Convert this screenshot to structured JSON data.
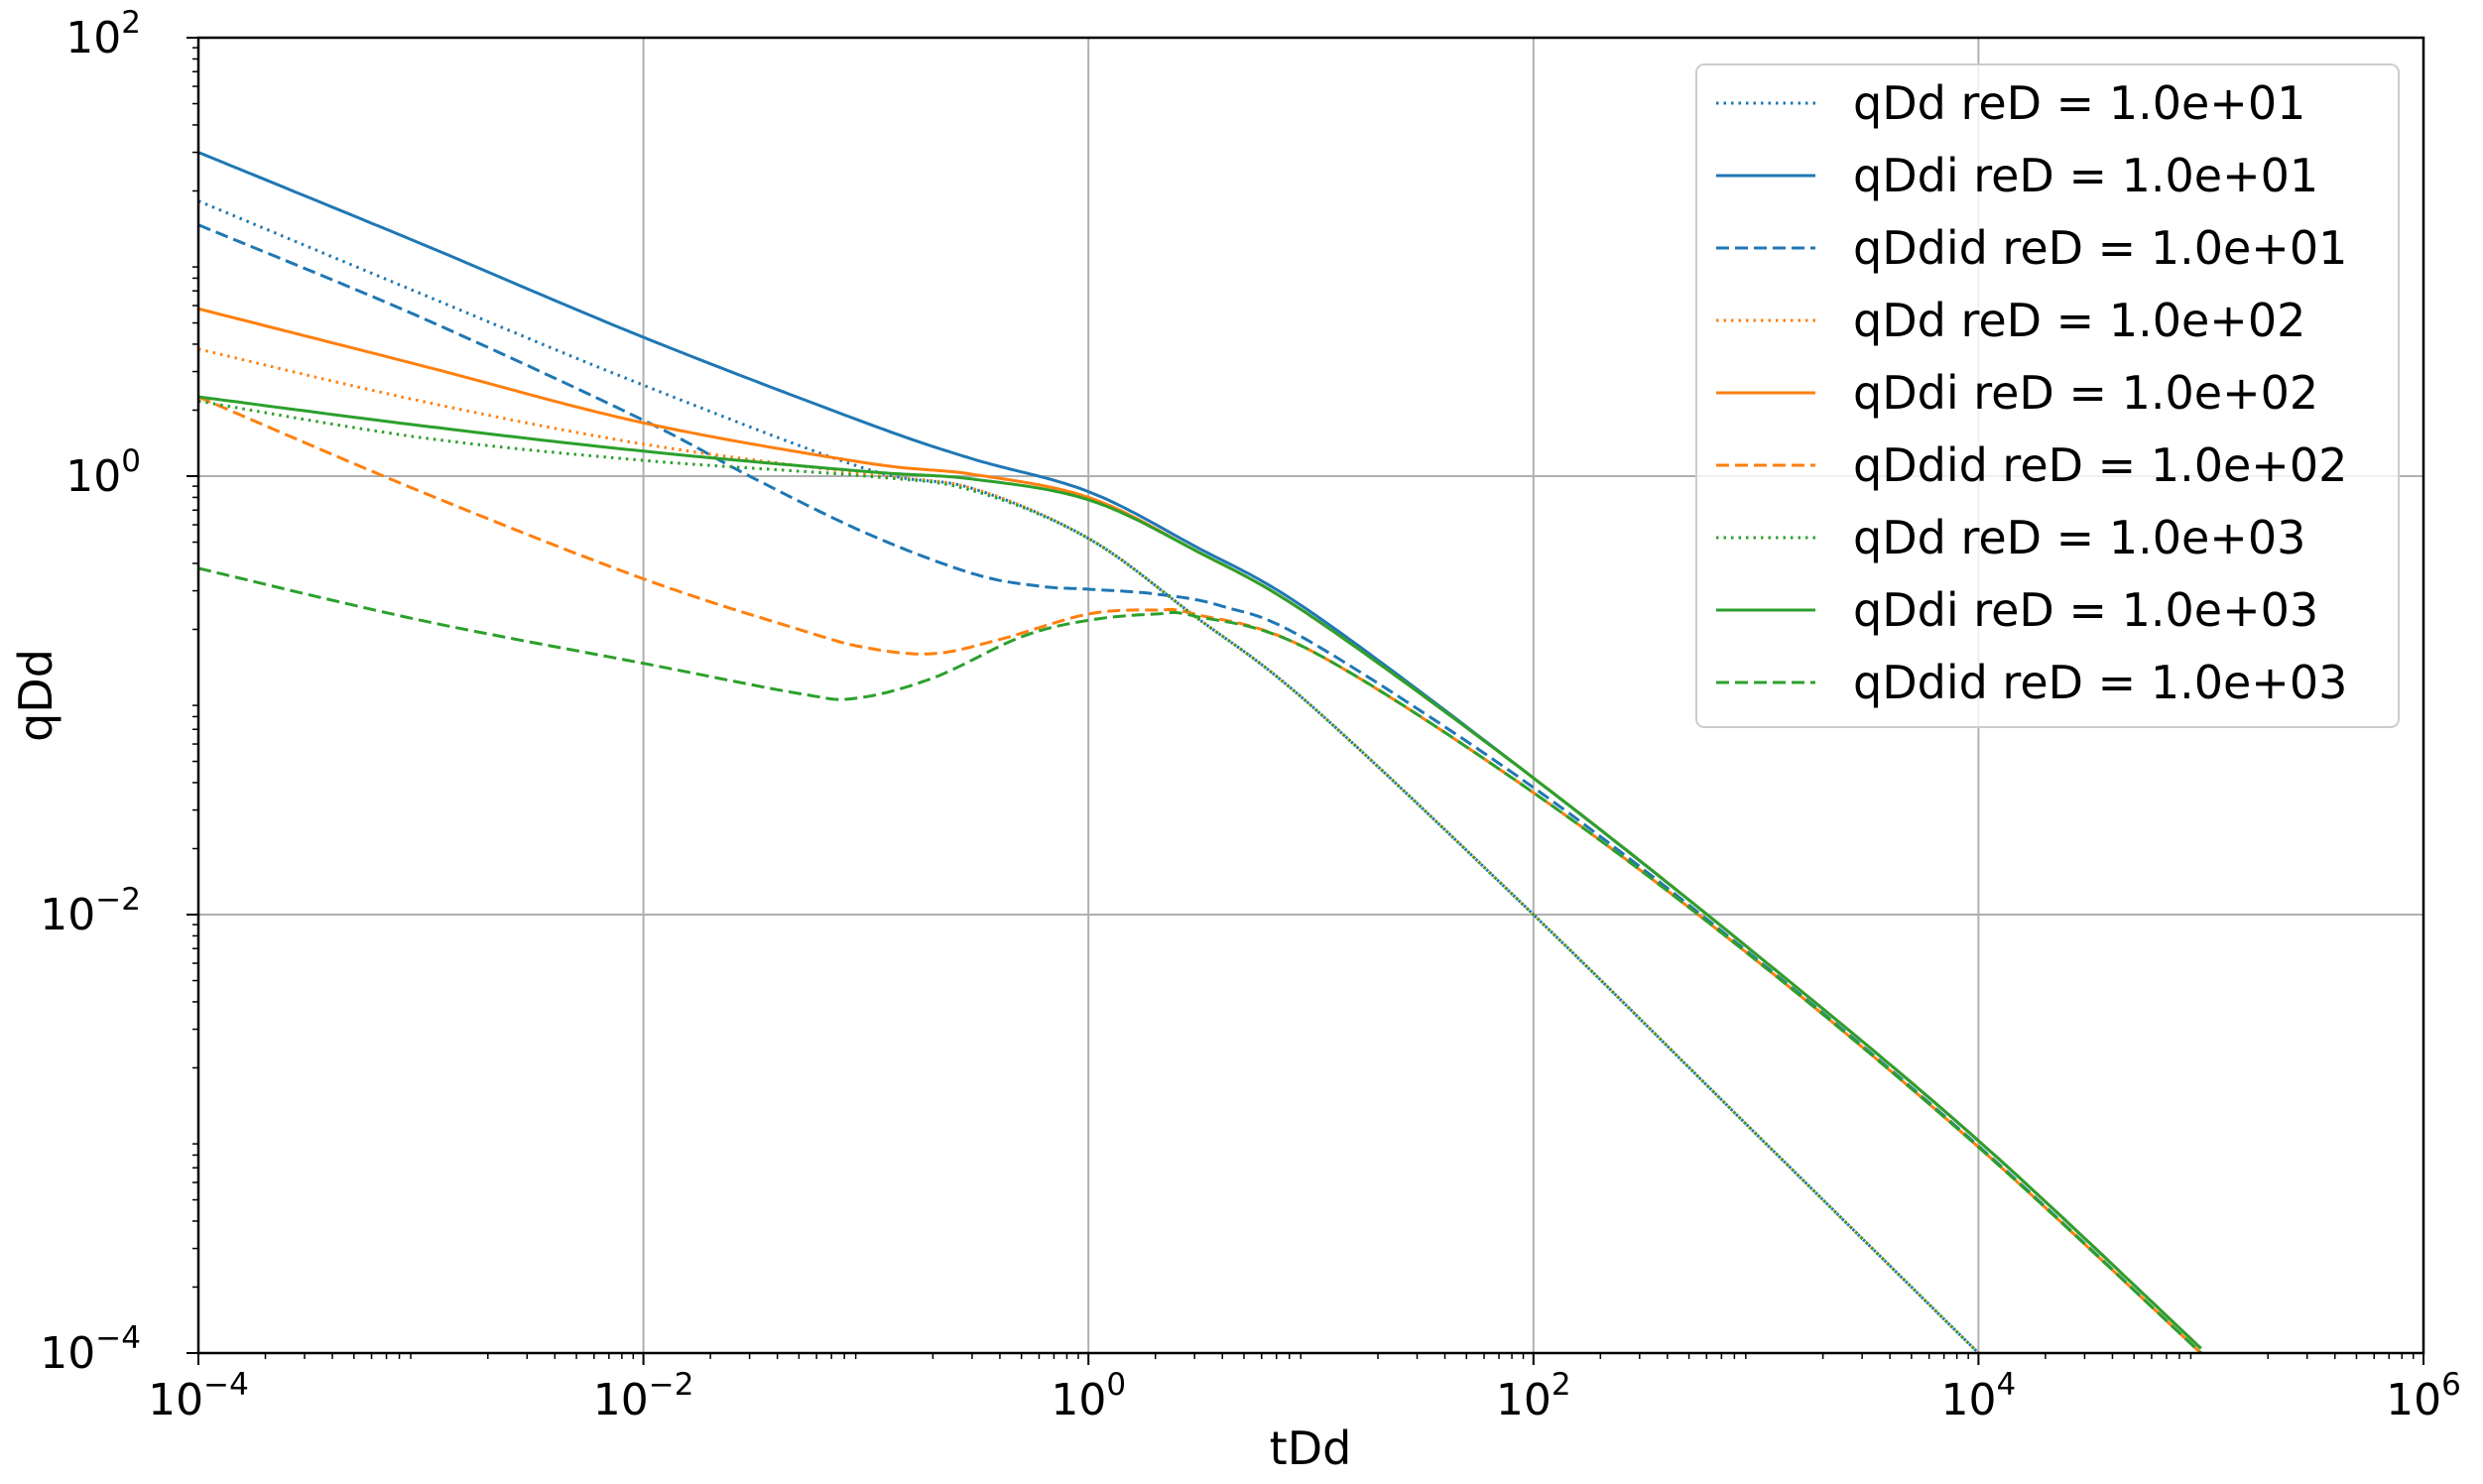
{
  "chart_data": {
    "type": "line",
    "title": "",
    "xlabel": "tDd",
    "ylabel": "qDd",
    "xscale": "log",
    "yscale": "log",
    "xlim": [
      0.0001,
      1000000
    ],
    "ylim": [
      0.0001,
      100
    ],
    "grid": true,
    "legend_position": "top-right",
    "x_ticks": [
      {
        "value": 0.0001,
        "base": "10",
        "exp": "−4"
      },
      {
        "value": 0.01,
        "base": "10",
        "exp": "−2"
      },
      {
        "value": 1,
        "base": "10",
        "exp": "0"
      },
      {
        "value": 100,
        "base": "10",
        "exp": "2"
      },
      {
        "value": 10000,
        "base": "10",
        "exp": "4"
      },
      {
        "value": 1000000,
        "base": "10",
        "exp": "6"
      }
    ],
    "y_ticks": [
      {
        "value": 0.0001,
        "base": "10",
        "exp": "−4"
      },
      {
        "value": 0.01,
        "base": "10",
        "exp": "−2"
      },
      {
        "value": 1,
        "base": "10",
        "exp": "0"
      },
      {
        "value": 100,
        "base": "10",
        "exp": "2"
      }
    ],
    "series": [
      {
        "name": "qDd reD = 1.0e+01",
        "color": "#1f77b4",
        "style": "dotted",
        "x": [
          0.0001,
          0.001,
          0.01,
          0.1,
          0.3,
          1,
          3,
          10,
          100,
          1000,
          10000
        ],
        "y": [
          18,
          6.8,
          2.6,
          1.08,
          0.88,
          0.52,
          0.23,
          0.09,
          0.01,
          0.001,
          0.0001
        ]
      },
      {
        "name": "qDdi reD = 1.0e+01",
        "color": "#1f77b4",
        "style": "solid",
        "x": [
          0.0001,
          0.001,
          0.01,
          0.1,
          0.3,
          1,
          3,
          10,
          100,
          1000,
          10000,
          100000
        ],
        "y": [
          30,
          11.5,
          4.3,
          1.75,
          1.2,
          0.85,
          0.48,
          0.24,
          0.042,
          0.0066,
          0.00093,
          0.000105
        ]
      },
      {
        "name": "qDdid reD = 1.0e+01",
        "color": "#1f77b4",
        "style": "dashed",
        "x": [
          0.0001,
          0.001,
          0.01,
          0.03,
          0.1,
          0.3,
          0.6,
          1,
          2,
          4,
          10,
          100,
          1000,
          10000,
          100000
        ],
        "y": [
          14,
          5.3,
          1.8,
          1.0,
          0.55,
          0.36,
          0.315,
          0.305,
          0.29,
          0.255,
          0.175,
          0.038,
          0.0063,
          0.00088,
          0.0001
        ]
      },
      {
        "name": "qDd reD = 1.0e+02",
        "color": "#ff7f0e",
        "style": "dotted",
        "x": [
          0.0001,
          0.001,
          0.01,
          0.1,
          0.3,
          1,
          3,
          10,
          100,
          1000,
          10000
        ],
        "y": [
          3.8,
          2.2,
          1.4,
          1.02,
          0.88,
          0.52,
          0.23,
          0.09,
          0.01,
          0.001,
          0.0001
        ]
      },
      {
        "name": "qDdi reD = 1.0e+02",
        "color": "#ff7f0e",
        "style": "solid",
        "x": [
          0.0001,
          0.001,
          0.01,
          0.1,
          0.3,
          1,
          3,
          10,
          100,
          1000,
          10000,
          100000
        ],
        "y": [
          5.8,
          3.2,
          1.75,
          1.15,
          1.02,
          0.8,
          0.46,
          0.23,
          0.042,
          0.0066,
          0.00093,
          0.000105
        ]
      },
      {
        "name": "qDdid reD = 1.0e+02",
        "color": "#ff7f0e",
        "style": "dashed",
        "x": [
          0.0001,
          0.001,
          0.01,
          0.05,
          0.1,
          0.2,
          0.4,
          1,
          2,
          3,
          10,
          100,
          1000,
          10000,
          100000
        ],
        "y": [
          2.3,
          0.85,
          0.34,
          0.2,
          0.165,
          0.155,
          0.18,
          0.235,
          0.245,
          0.235,
          0.16,
          0.036,
          0.0062,
          0.00087,
          0.0001
        ]
      },
      {
        "name": "qDd reD = 1.0e+03",
        "color": "#2ca02c",
        "style": "dotted",
        "x": [
          0.0001,
          0.001,
          0.01,
          0.1,
          0.3,
          1,
          3,
          10,
          100,
          1000,
          10000
        ],
        "y": [
          2.2,
          1.5,
          1.18,
          1.0,
          0.86,
          0.52,
          0.23,
          0.09,
          0.01,
          0.001,
          0.0001
        ]
      },
      {
        "name": "qDdi reD = 1.0e+03",
        "color": "#2ca02c",
        "style": "solid",
        "x": [
          0.0001,
          0.001,
          0.01,
          0.1,
          0.3,
          1,
          3,
          10,
          100,
          1000,
          10000,
          100000
        ],
        "y": [
          2.3,
          1.7,
          1.3,
          1.05,
          0.97,
          0.78,
          0.46,
          0.23,
          0.042,
          0.0066,
          0.00093,
          0.000105
        ]
      },
      {
        "name": "qDdid reD = 1.0e+03",
        "color": "#2ca02c",
        "style": "dashed",
        "x": [
          0.0001,
          0.001,
          0.01,
          0.05,
          0.09,
          0.2,
          0.5,
          1,
          2,
          3,
          10,
          100,
          1000,
          10000,
          100000
        ],
        "y": [
          0.38,
          0.22,
          0.14,
          0.102,
          0.097,
          0.12,
          0.185,
          0.22,
          0.235,
          0.23,
          0.16,
          0.036,
          0.0062,
          0.00087,
          0.0001
        ]
      }
    ]
  }
}
